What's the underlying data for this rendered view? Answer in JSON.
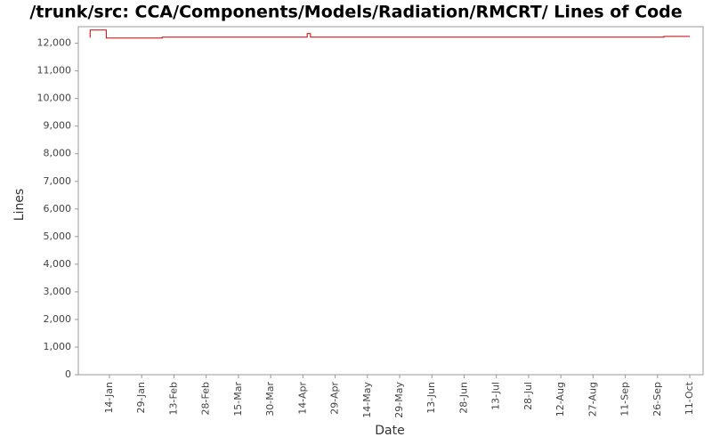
{
  "chart_data": {
    "type": "line",
    "title": "/trunk/src: CCA/Components/Models/Radiation/RMCRT/ Lines of Code",
    "x_label": "Date",
    "y_label": "Lines",
    "series": [
      {
        "name": "Lines",
        "color": "#cc0000",
        "x": [
          5,
          5,
          12.5,
          12.5,
          38.5,
          38.5,
          106,
          106,
          107.5,
          107.5,
          272,
          272,
          284
        ],
        "values": [
          12200,
          12480,
          12480,
          12190,
          12190,
          12220,
          12220,
          12350,
          12350,
          12220,
          12220,
          12250,
          12250
        ]
      }
    ],
    "xlim": [
      -0.5,
      290.2
    ],
    "xticks": [
      {
        "value": 14,
        "label": "14-Jan"
      },
      {
        "value": 29,
        "label": "29-Jan"
      },
      {
        "value": 44,
        "label": "13-Feb"
      },
      {
        "value": 59,
        "label": "28-Feb"
      },
      {
        "value": 74,
        "label": "15-Mar"
      },
      {
        "value": 89,
        "label": "30-Mar"
      },
      {
        "value": 104,
        "label": "14-Apr"
      },
      {
        "value": 119,
        "label": "29-Apr"
      },
      {
        "value": 134,
        "label": "14-May"
      },
      {
        "value": 149,
        "label": "29-May"
      },
      {
        "value": 164,
        "label": "13-Jun"
      },
      {
        "value": 179,
        "label": "28-Jun"
      },
      {
        "value": 194,
        "label": "13-Jul"
      },
      {
        "value": 209,
        "label": "28-Jul"
      },
      {
        "value": 224,
        "label": "12-Aug"
      },
      {
        "value": 239,
        "label": "27-Aug"
      },
      {
        "value": 254,
        "label": "11-Sep"
      },
      {
        "value": 269,
        "label": "26-Sep"
      },
      {
        "value": 284,
        "label": "11-Oct"
      }
    ],
    "ylim": [
      0,
      12600
    ],
    "yticks": [
      0,
      {
        "value": 1000,
        "label": "1,000"
      },
      {
        "value": 2000,
        "label": "2,000"
      },
      {
        "value": 3000,
        "label": "3,000"
      },
      {
        "value": 4000,
        "label": "4,000"
      },
      {
        "value": 5000,
        "label": "5,000"
      },
      {
        "value": 6000,
        "label": "6,000"
      },
      {
        "value": 7000,
        "label": "7,000"
      },
      {
        "value": 8000,
        "label": "8,000"
      },
      {
        "value": 9000,
        "label": "9,000"
      },
      {
        "value": 10000,
        "label": "10,000"
      },
      {
        "value": 11000,
        "label": "11,000"
      },
      {
        "value": 12000,
        "label": "12,000"
      }
    ],
    "grid": false
  }
}
